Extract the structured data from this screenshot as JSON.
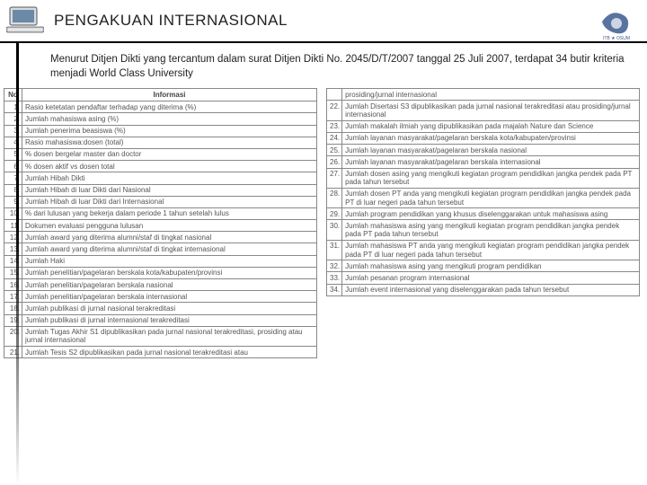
{
  "header": {
    "title": "PENGAKUAN INTERNASIONAL"
  },
  "subtitle": "Menurut Ditjen Dikti yang tercantum dalam surat Ditjen Dikti No. 2045/D/T/2007 tanggal 25 Juli 2007, terdapat 34 butir kriteria menjadi World Class University",
  "left_table": {
    "headers": {
      "no": "No",
      "info": "Informasi"
    },
    "rows": [
      {
        "n": "1.",
        "t": "Rasio ketetatan pendaftar terhadap yang diterima (%)"
      },
      {
        "n": "2.",
        "t": "Jumlah mahasiswa asing (%)"
      },
      {
        "n": "3.",
        "t": "Jumlah penerima beasiswa (%)"
      },
      {
        "n": "4.",
        "t": "Rasio mahasiswa:dosen (total)"
      },
      {
        "n": "5.",
        "t": "% dosen bergelar master dan doctor"
      },
      {
        "n": "6.",
        "t": "% dosen aktif vs dosen total"
      },
      {
        "n": "7.",
        "t": "Jumlah Hibah Dikti"
      },
      {
        "n": "8.",
        "t": "Jumlah Hibah di luar Dikti dari Nasional"
      },
      {
        "n": "9.",
        "t": "Jumlah Hibah di luar Dikti dari Internasional"
      },
      {
        "n": "10.",
        "t": "% dari lulusan yang bekerja dalam periode 1 tahun setelah lulus"
      },
      {
        "n": "11.",
        "t": "Dokumen evaluasi pengguna lulusan"
      },
      {
        "n": "12.",
        "t": "Jumlah award yang diterima alumni/staf di tingkat nasional"
      },
      {
        "n": "13.",
        "t": "Jumlah award yang diterima alumni/staf di tingkat internasional"
      },
      {
        "n": "14.",
        "t": "Jumlah Haki"
      },
      {
        "n": "15.",
        "t": "Jumlah penelitian/pagelaran berskala kota/kabupaten/provinsi"
      },
      {
        "n": "16.",
        "t": "Jumlah penelitian/pagelaran berskala nasional"
      },
      {
        "n": "17.",
        "t": "Jumlah penelitian/pagelaran berskala internasional"
      },
      {
        "n": "18.",
        "t": "Jumlah publikasi di jurnal nasional terakreditasi"
      },
      {
        "n": "19.",
        "t": "Jumlah publikasi di jurnal internasional terakreditasi"
      },
      {
        "n": "20.",
        "t": "Jumlah Tugas Akhir S1 dipublikasikan pada jurnal nasional terakreditasi, prosiding atau jurnal internasional"
      },
      {
        "n": "21.",
        "t": "Jumlah Tesis S2 dipublikasikan pada jurnal nasional terakreditasi atau"
      }
    ]
  },
  "right_table": {
    "rows": [
      {
        "n": "",
        "t": "prosiding/jurnal internasional"
      },
      {
        "n": "22.",
        "t": "Jumlah Disertasi S3 dipublikasikan pada jurnal nasional terakreditasi atau prosiding/jurnal internasional"
      },
      {
        "n": "23.",
        "t": "Jumlah makalah ilmiah yang dipublikasikan pada majalah Nature dan Science"
      },
      {
        "n": "24.",
        "t": "Jumlah layanan masyarakat/pagelaran berskala kota/kabupaten/provinsi"
      },
      {
        "n": "25.",
        "t": "Jumlah layanan masyarakat/pagelaran berskala nasional"
      },
      {
        "n": "26.",
        "t": "Jumlah layanan masyarakat/pagelaran berskala internasional"
      },
      {
        "n": "27.",
        "t": "Jumlah dosen asing yang mengikuti kegiatan program pendidikan jangka pendek pada PT pada tahun tersebut"
      },
      {
        "n": "28.",
        "t": "Jumlah dosen PT anda yang mengikuti kegiatan program pendidikan jangka pendek pada PT di luar negeri pada tahun tersebut"
      },
      {
        "n": "29.",
        "t": "Jumlah program pendidikan yang khusus diselenggarakan untuk mahasiswa asing"
      },
      {
        "n": "30.",
        "t": "Jumlah mahasiswa asing yang mengikuti kegiatan program pendidikan jangka pendek pada PT pada tahun tersebut"
      },
      {
        "n": "31.",
        "t": "Jumlah mahasiswa PT anda yang mengikuti kegiatan program pendidikan jangka pendek pada PT di luar negeri pada tahun tersebut"
      },
      {
        "n": "32.",
        "t": "Jumlah mahasiswa asing yang mengikuti program pendidikan"
      },
      {
        "n": "33.",
        "t": "Jumlah pesanan program internasional"
      },
      {
        "n": "34.",
        "t": "Jumlah event internasional yang diselenggarakan pada tahun tersebut"
      }
    ]
  },
  "colors": {
    "border": "#888888",
    "text": "#555555",
    "title": "#222222"
  }
}
